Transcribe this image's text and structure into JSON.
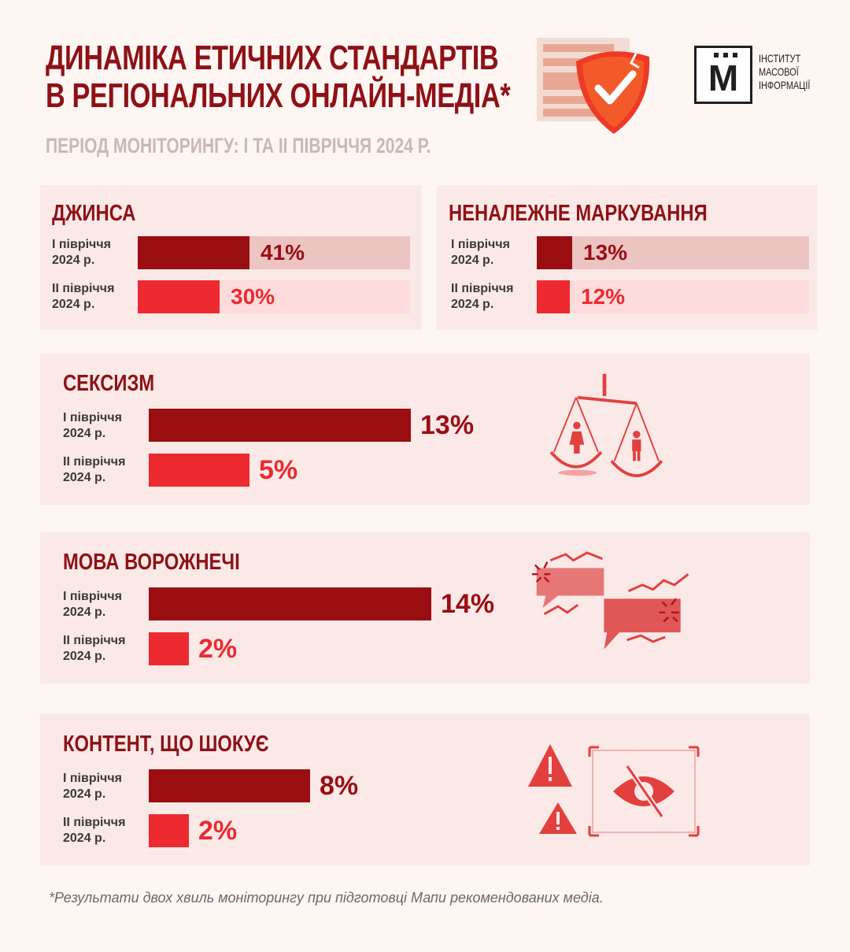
{
  "header": {
    "title_line1": "ДИНАМІКА ЕТИЧНИХ СТАНДАРТІВ",
    "title_line2": "В РЕГІОНАЛЬНИХ ОНЛАЙН-МЕДІА*",
    "subtitle": "ПЕРІОД МОНІТОРИНГУ: І ТА ІІ ПІВРІЧЧЯ 2024 Р."
  },
  "logo": {
    "letter": "М",
    "line1": "ІНСТИТУТ",
    "line2": "МАСОВОЇ",
    "line3": "ІНФОРМАЦІЇ"
  },
  "colors": {
    "dark_bar": "#9a0e12",
    "light_bar": "#ec2a2f",
    "dark_track": "#ecc4c2",
    "light_track": "#fddcdc",
    "title": "#8e1116",
    "panel": "#fbe9e7"
  },
  "chart_data": [
    {
      "type": "bar",
      "title": "ДЖИНСА",
      "categories": [
        "І півріччя\n2024 р.",
        "ІІ півріччя\n2024 р."
      ],
      "series": [
        {
          "values": [
            41,
            30
          ]
        }
      ],
      "labels": [
        "41%",
        "30%"
      ],
      "ylim": [
        0,
        100
      ]
    },
    {
      "type": "bar",
      "title": "НЕНАЛЕЖНЕ МАРКУВАННЯ",
      "categories": [
        "І півріччя\n2024 р.",
        "ІІ півріччя\n2024 р."
      ],
      "series": [
        {
          "values": [
            13,
            12
          ]
        }
      ],
      "labels": [
        "13%",
        "12%"
      ],
      "ylim": [
        0,
        100
      ]
    },
    {
      "type": "bar",
      "title": "СЕКСИЗМ",
      "categories": [
        "І півріччя\n2024 р.",
        "ІІ півріччя\n2024 р."
      ],
      "series": [
        {
          "values": [
            13,
            5
          ]
        }
      ],
      "labels": [
        "13%",
        "5%"
      ]
    },
    {
      "type": "bar",
      "title": "МОВА ВОРОЖНЕЧІ",
      "categories": [
        "І півріччя\n2024 р.",
        "ІІ півріччя\n2024 р."
      ],
      "series": [
        {
          "values": [
            14,
            2
          ]
        }
      ],
      "labels": [
        "14%",
        "2%"
      ]
    },
    {
      "type": "bar",
      "title": "КОНТЕНТ, ЩО ШОКУЄ",
      "categories": [
        "І півріччя\n2024 р.",
        "ІІ півріччя\n2024 р."
      ],
      "series": [
        {
          "values": [
            8,
            2
          ]
        }
      ],
      "labels": [
        "8%",
        "2%"
      ]
    }
  ],
  "footnote": "*Результати двох хвиль моніторингу при підготовці Мапи рекомендованих медіа."
}
